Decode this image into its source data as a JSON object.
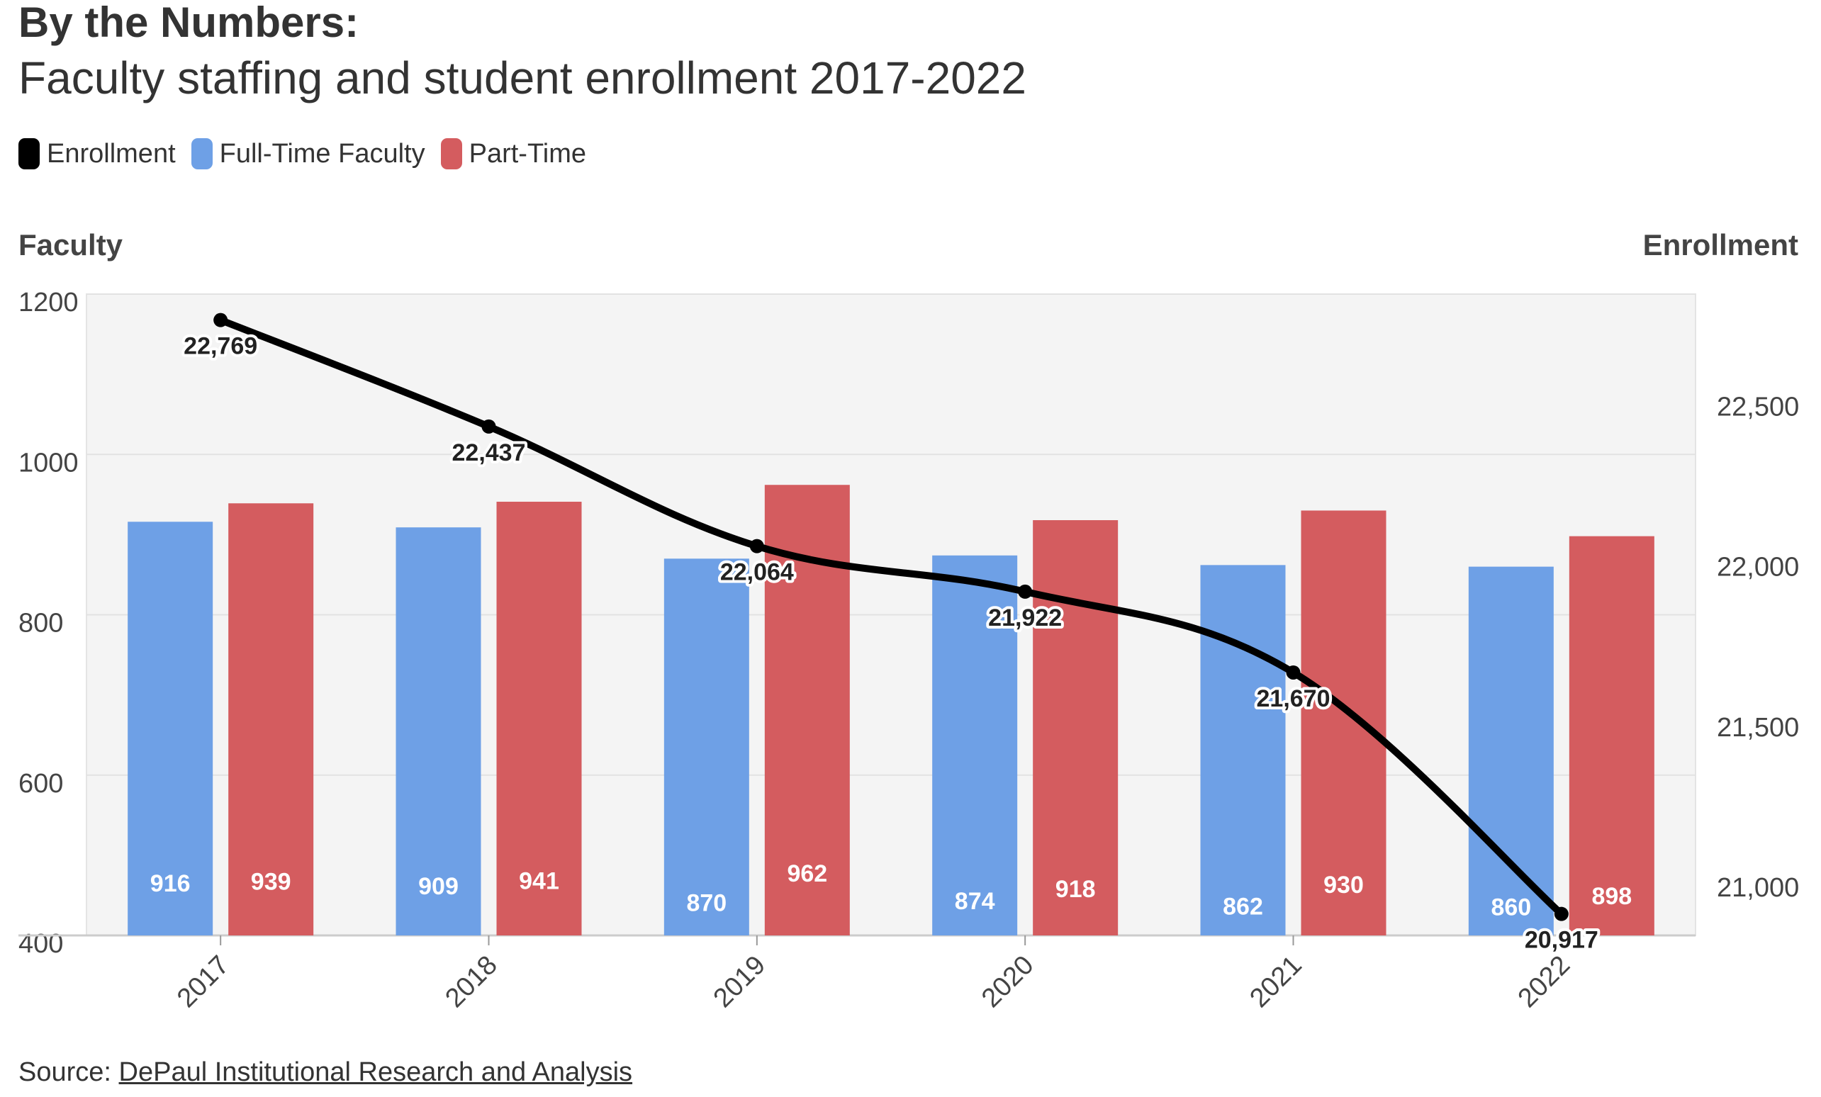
{
  "chart_data": {
    "type": "bar",
    "title": "By the Numbers:",
    "subtitle": "Faculty staffing and student enrollment 2017-2022",
    "categories": [
      "2017",
      "2018",
      "2019",
      "2020",
      "2021",
      "2022"
    ],
    "series": [
      {
        "name": "Full-Time Faculty",
        "type": "bar",
        "axis": "left",
        "color": "#6ea0e6",
        "values": [
          916,
          909,
          870,
          874,
          862,
          860
        ]
      },
      {
        "name": "Part-Time",
        "type": "bar",
        "axis": "left",
        "color": "#d45c5f",
        "values": [
          939,
          941,
          962,
          918,
          930,
          898
        ]
      },
      {
        "name": "Enrollment",
        "type": "line",
        "axis": "right",
        "color": "#000000",
        "values": [
          22769,
          22437,
          22064,
          21922,
          21670,
          20917
        ],
        "labels": [
          "22,769",
          "22,437",
          "22,064",
          "21,922",
          "21,670",
          "20,917"
        ]
      }
    ],
    "legend_order": [
      "Enrollment",
      "Full-Time Faculty",
      "Part-Time"
    ],
    "legend_placement": "top-left",
    "ylabel_left": "Faculty",
    "ylabel_right": "Enrollment",
    "ylim_left": [
      400,
      1200
    ],
    "yticks_left": [
      400,
      600,
      800,
      1000,
      1200
    ],
    "yticks_left_labels": [
      "400",
      "600",
      "800",
      "1000",
      "1200"
    ],
    "ylim_right": [
      20850,
      22850
    ],
    "yticks_right": [
      21000,
      21500,
      22000,
      22500
    ],
    "yticks_right_labels": [
      "21,000",
      "21,500",
      "22,000",
      "22,500"
    ],
    "grid": true,
    "plot_background": "#f4f4f4"
  },
  "legend": {
    "items": [
      {
        "label": "Enrollment",
        "color": "#000000"
      },
      {
        "label": "Full-Time Faculty",
        "color": "#6ea0e6"
      },
      {
        "label": "Part-Time",
        "color": "#d45c5f"
      }
    ]
  },
  "source": {
    "prefix": "Source: ",
    "link_text": "DePaul Institutional Research and Analysis"
  }
}
